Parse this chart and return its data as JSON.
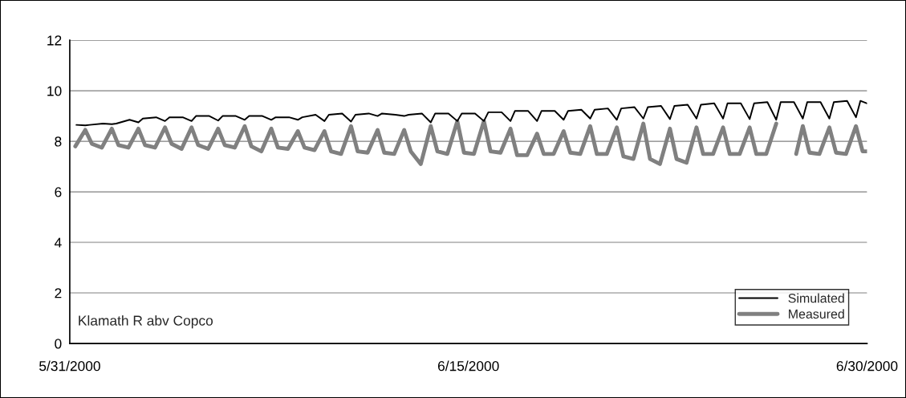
{
  "chart_data": {
    "type": "line",
    "xlim": [
      "2000-05-31",
      "2000-06-30"
    ],
    "xticks": [
      {
        "value": "2000-05-31",
        "label": "5/31/2000"
      },
      {
        "value": "2000-06-15",
        "label": "6/15/2000"
      },
      {
        "value": "2000-06-30",
        "label": "6/30/2000"
      }
    ],
    "ylim": [
      0,
      12
    ],
    "yticks": [
      0,
      2,
      4,
      6,
      8,
      10,
      12
    ],
    "grid": "y",
    "legend": "bottom right",
    "annotations": [
      "Klamath R abv Copco"
    ],
    "series": [
      {
        "name": "Simulated",
        "color": "#000000",
        "line_style": "solid",
        "x": [
          "2000-05-31T06:00",
          "2000-05-31T14:00",
          "2000-05-31T18:00",
          "2000-06-01T06:00",
          "2000-06-01T14:00",
          "2000-06-01T18:00",
          "2000-06-02T06:00",
          "2000-06-02T14:00",
          "2000-06-02T18:00",
          "2000-06-03T06:00",
          "2000-06-03T14:00",
          "2000-06-03T18:00",
          "2000-06-04T06:00",
          "2000-06-04T14:00",
          "2000-06-04T18:00",
          "2000-06-05T06:00",
          "2000-06-05T14:00",
          "2000-06-05T18:00",
          "2000-06-06T06:00",
          "2000-06-06T14:00",
          "2000-06-06T18:00",
          "2000-06-07T06:00",
          "2000-06-07T14:00",
          "2000-06-07T18:00",
          "2000-06-08T06:00",
          "2000-06-08T14:00",
          "2000-06-08T18:00",
          "2000-06-09T06:00",
          "2000-06-09T14:00",
          "2000-06-09T18:00",
          "2000-06-10T06:00",
          "2000-06-10T14:00",
          "2000-06-10T18:00",
          "2000-06-11T06:00",
          "2000-06-11T14:00",
          "2000-06-11T18:00",
          "2000-06-12T06:00",
          "2000-06-12T14:00",
          "2000-06-12T18:00",
          "2000-06-13T06:00",
          "2000-06-13T14:00",
          "2000-06-13T18:00",
          "2000-06-14T06:00",
          "2000-06-14T14:00",
          "2000-06-14T18:00",
          "2000-06-15T06:00",
          "2000-06-15T14:00",
          "2000-06-15T18:00",
          "2000-06-16T06:00",
          "2000-06-16T14:00",
          "2000-06-16T18:00",
          "2000-06-17T06:00",
          "2000-06-17T14:00",
          "2000-06-17T18:00",
          "2000-06-18T06:00",
          "2000-06-18T14:00",
          "2000-06-18T18:00",
          "2000-06-19T06:00",
          "2000-06-19T14:00",
          "2000-06-19T18:00",
          "2000-06-20T06:00",
          "2000-06-20T14:00",
          "2000-06-20T18:00",
          "2000-06-21T06:00",
          "2000-06-21T14:00",
          "2000-06-21T18:00",
          "2000-06-22T06:00",
          "2000-06-22T14:00",
          "2000-06-22T18:00",
          "2000-06-23T06:00",
          "2000-06-23T14:00",
          "2000-06-23T18:00",
          "2000-06-24T06:00",
          "2000-06-24T14:00",
          "2000-06-24T18:00",
          "2000-06-25T06:00",
          "2000-06-25T14:00",
          "2000-06-25T18:00",
          "2000-06-26T06:00",
          "2000-06-26T14:00",
          "2000-06-26T18:00",
          "2000-06-27T06:00",
          "2000-06-27T14:00",
          "2000-06-27T18:00",
          "2000-06-28T06:00",
          "2000-06-28T14:00",
          "2000-06-28T18:00",
          "2000-06-29T06:00",
          "2000-06-29T14:00",
          "2000-06-29T18:00",
          "2000-06-30T00:00"
        ],
        "values": [
          8.65,
          8.63,
          8.65,
          8.7,
          8.68,
          8.7,
          8.85,
          8.75,
          8.9,
          8.95,
          8.8,
          8.95,
          8.95,
          8.8,
          9.0,
          9.0,
          8.82,
          9.0,
          9.0,
          8.85,
          9.0,
          9.0,
          8.85,
          8.95,
          8.95,
          8.85,
          8.95,
          9.05,
          8.8,
          9.05,
          9.1,
          8.78,
          9.05,
          9.1,
          9.0,
          9.1,
          9.05,
          9.0,
          9.05,
          9.1,
          8.75,
          9.1,
          9.1,
          8.8,
          9.1,
          9.1,
          8.8,
          9.15,
          9.15,
          8.8,
          9.2,
          9.2,
          8.8,
          9.2,
          9.2,
          8.85,
          9.2,
          9.25,
          8.9,
          9.25,
          9.3,
          8.85,
          9.3,
          9.35,
          8.9,
          9.35,
          9.4,
          8.88,
          9.4,
          9.45,
          8.9,
          9.45,
          9.5,
          8.9,
          9.5,
          9.5,
          8.88,
          9.5,
          9.55,
          8.85,
          9.55,
          9.55,
          8.9,
          9.55,
          9.55,
          8.9,
          9.55,
          9.6,
          8.95,
          9.6,
          9.5
        ]
      },
      {
        "name": "Measured",
        "color": "#808080",
        "line_style": "solid",
        "x": [
          "2000-05-31T05:00",
          "2000-05-31T14:00",
          "2000-05-31T20:00",
          "2000-06-01T05:00",
          "2000-06-01T14:00",
          "2000-06-01T20:00",
          "2000-06-02T05:00",
          "2000-06-02T14:00",
          "2000-06-02T20:00",
          "2000-06-03T05:00",
          "2000-06-03T14:00",
          "2000-06-03T20:00",
          "2000-06-04T05:00",
          "2000-06-04T14:00",
          "2000-06-04T20:00",
          "2000-06-05T05:00",
          "2000-06-05T14:00",
          "2000-06-05T20:00",
          "2000-06-06T05:00",
          "2000-06-06T14:00",
          "2000-06-06T20:00",
          "2000-06-07T05:00",
          "2000-06-07T14:00",
          "2000-06-07T20:00",
          "2000-06-08T05:00",
          "2000-06-08T14:00",
          "2000-06-08T20:00",
          "2000-06-09T05:00",
          "2000-06-09T14:00",
          "2000-06-09T20:00",
          "2000-06-10T05:00",
          "2000-06-10T14:00",
          "2000-06-10T20:00",
          "2000-06-11T05:00",
          "2000-06-11T14:00",
          "2000-06-11T20:00",
          "2000-06-12T05:00",
          "2000-06-12T14:00",
          "2000-06-12T20:00",
          "2000-06-13T05:00",
          "2000-06-13T14:00",
          "2000-06-13T20:00",
          "2000-06-14T05:00",
          "2000-06-14T14:00",
          "2000-06-14T20:00",
          "2000-06-15T05:00",
          "2000-06-15T14:00",
          "2000-06-15T20:00",
          "2000-06-16T05:00",
          "2000-06-16T14:00",
          "2000-06-16T20:00",
          "2000-06-17T05:00",
          "2000-06-17T14:00",
          "2000-06-17T20:00",
          "2000-06-18T05:00",
          "2000-06-18T14:00",
          "2000-06-18T20:00",
          "2000-06-19T05:00",
          "2000-06-19T14:00",
          "2000-06-19T20:00",
          "2000-06-20T05:00",
          "2000-06-20T14:00",
          "2000-06-20T20:00",
          "2000-06-21T05:00",
          "2000-06-21T14:00",
          "2000-06-21T20:00",
          "2000-06-22T05:00",
          "2000-06-22T14:00",
          "2000-06-22T20:00",
          "2000-06-23T05:00",
          "2000-06-23T14:00",
          "2000-06-23T20:00",
          "2000-06-24T05:00",
          "2000-06-24T14:00",
          "2000-06-24T20:00",
          "2000-06-25T05:00",
          "2000-06-25T14:00",
          "2000-06-25T20:00",
          "2000-06-26T05:00",
          "2000-06-26T14:00",
          "2000-06-26T20:00",
          "2000-06-27T08:00",
          "2000-06-27T14:00",
          "2000-06-27T20:00",
          "2000-06-28T05:00",
          "2000-06-28T14:00",
          "2000-06-28T20:00",
          "2000-06-29T05:00",
          "2000-06-29T14:00",
          "2000-06-29T20:00",
          "2000-06-30T00:00"
        ],
        "values": [
          7.8,
          8.45,
          7.9,
          7.75,
          8.5,
          7.85,
          7.75,
          8.5,
          7.85,
          7.75,
          8.55,
          7.9,
          7.7,
          8.55,
          7.85,
          7.7,
          8.5,
          7.85,
          7.75,
          8.6,
          7.8,
          7.6,
          8.5,
          7.75,
          7.7,
          8.4,
          7.75,
          7.65,
          8.4,
          7.6,
          7.5,
          8.6,
          7.6,
          7.55,
          8.45,
          7.55,
          7.5,
          8.45,
          7.6,
          7.1,
          8.6,
          7.6,
          7.5,
          8.8,
          7.55,
          7.5,
          8.8,
          7.6,
          7.55,
          8.5,
          7.45,
          7.45,
          8.3,
          7.5,
          7.5,
          8.4,
          7.55,
          7.5,
          8.6,
          7.5,
          7.5,
          8.55,
          7.4,
          7.3,
          8.7,
          7.3,
          7.1,
          8.5,
          7.3,
          7.15,
          8.55,
          7.5,
          7.5,
          8.55,
          7.5,
          7.5,
          8.55,
          7.5,
          7.5,
          8.7,
          null,
          7.5,
          8.6,
          7.55,
          7.5,
          8.55,
          7.55,
          7.5,
          8.6,
          7.6,
          7.6
        ]
      }
    ]
  }
}
